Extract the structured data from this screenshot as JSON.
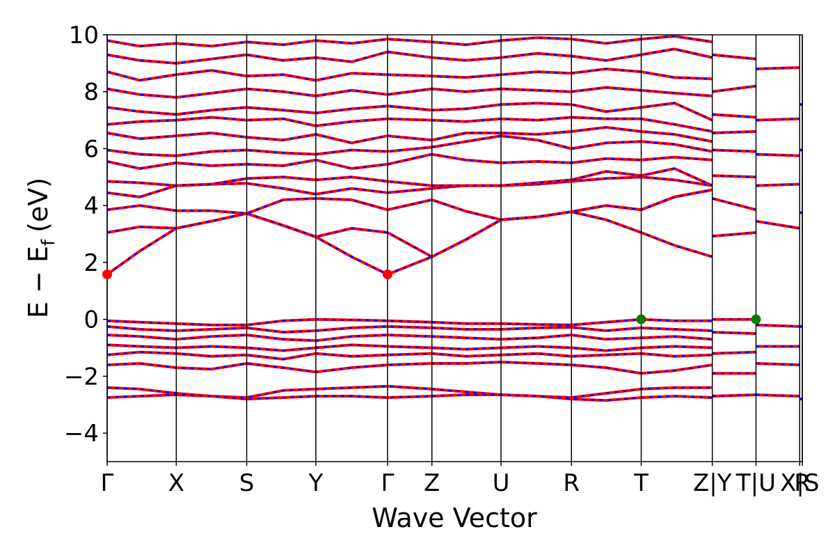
{
  "chart_data": {
    "type": "line",
    "title": "",
    "xlabel": "Wave Vector",
    "ylabel": "E − E",
    "ylabel_subscript": "f",
    "ylabel_suffix": "(eV)",
    "ylim": [
      -5,
      10
    ],
    "yticks": [
      -4,
      -2,
      0,
      2,
      4,
      6,
      8,
      10
    ],
    "ytick_labels": [
      "−4",
      "−2",
      "0",
      "2",
      "4",
      "6",
      "8",
      "10"
    ],
    "x_range": [
      0,
      10.66
    ],
    "kpoints": [
      {
        "label": "Γ",
        "x": 0.0
      },
      {
        "label": "X",
        "x": 1.06
      },
      {
        "label": "S",
        "x": 2.14
      },
      {
        "label": "Y",
        "x": 3.2
      },
      {
        "label": "Γ",
        "x": 4.3
      },
      {
        "label": "Z",
        "x": 4.98
      },
      {
        "label": "U",
        "x": 6.04
      },
      {
        "label": "R",
        "x": 7.12
      },
      {
        "label": "T",
        "x": 8.19
      },
      {
        "label": "Z|Y",
        "x": 9.28
      },
      {
        "label": "T|U",
        "x": 9.95
      },
      {
        "label": "X|S",
        "x": 10.62
      },
      {
        "label": "R",
        "x": 10.66
      }
    ],
    "grid": false,
    "colors": {
      "spin_up": "#ff0000",
      "spin_down": "#0000ff",
      "cbm": "#ff0000",
      "vbm": "#008000"
    },
    "markers": [
      {
        "type": "cbm",
        "x": 0.0,
        "y": 1.58
      },
      {
        "type": "cbm",
        "x": 4.3,
        "y": 1.58
      },
      {
        "type": "vbm",
        "x": 8.19,
        "y": 0.0
      },
      {
        "type": "vbm",
        "x": 9.95,
        "y": 0.0
      }
    ],
    "bands": [
      {
        "x": [
          0,
          0.5,
          1.06,
          1.6,
          2.14,
          2.7,
          3.2,
          3.75,
          4.3,
          4.98,
          5.5,
          6.04,
          6.6,
          7.12,
          7.65,
          8.19,
          8.7,
          9.28
        ],
        "y": [
          1.58,
          2.4,
          3.2,
          3.45,
          3.72,
          3.3,
          2.9,
          2.2,
          1.58,
          2.2,
          2.8,
          3.5,
          3.6,
          3.78,
          3.5,
          3.05,
          2.6,
          2.2
        ]
      },
      {
        "x": [
          0,
          0.5,
          1.06,
          1.6,
          2.14,
          2.7,
          3.2,
          3.75,
          4.3,
          4.98,
          5.5,
          6.04,
          6.6,
          7.12,
          7.65,
          8.19,
          8.7,
          9.28
        ],
        "y": [
          3.05,
          3.25,
          3.2,
          3.45,
          3.72,
          3.3,
          2.9,
          3.2,
          3.05,
          2.2,
          2.8,
          3.5,
          3.6,
          3.78,
          4.0,
          3.85,
          4.3,
          4.55
        ]
      },
      {
        "x": [
          0,
          0.5,
          1.06,
          1.6,
          2.14,
          2.7,
          3.2,
          3.75,
          4.3,
          4.98,
          5.5,
          6.04,
          6.6,
          7.12,
          7.65,
          8.19,
          8.7,
          9.28
        ],
        "y": [
          3.85,
          4.0,
          3.82,
          3.82,
          3.72,
          4.2,
          4.25,
          4.2,
          3.85,
          4.2,
          3.8,
          3.5,
          3.6,
          3.78,
          4.0,
          3.85,
          4.3,
          4.55
        ]
      },
      {
        "x": [
          0,
          0.5,
          1.06,
          1.6,
          2.14,
          2.7,
          3.2,
          3.75,
          4.3,
          4.98,
          5.5,
          6.04,
          6.6,
          7.12,
          7.65,
          8.19,
          8.7,
          9.28
        ],
        "y": [
          4.45,
          4.3,
          4.7,
          4.75,
          4.78,
          4.6,
          4.4,
          4.6,
          4.45,
          4.6,
          4.7,
          4.7,
          4.75,
          4.85,
          4.95,
          5.0,
          4.9,
          4.7
        ]
      },
      {
        "x": [
          0,
          0.5,
          1.06,
          1.6,
          2.14,
          2.7,
          3.2,
          3.75,
          4.3,
          4.98,
          5.5,
          6.04,
          6.6,
          7.12,
          7.65,
          8.19,
          8.7,
          9.28
        ],
        "y": [
          4.85,
          4.8,
          4.7,
          4.75,
          4.95,
          5.0,
          4.9,
          5.0,
          4.85,
          4.7,
          4.7,
          4.7,
          4.8,
          4.9,
          5.2,
          5.05,
          5.3,
          4.7
        ]
      },
      {
        "x": [
          0,
          0.5,
          1.06,
          1.6,
          2.14,
          2.7,
          3.2,
          3.75,
          4.3,
          4.98,
          5.5,
          6.04,
          6.6,
          7.12,
          7.65,
          8.19,
          8.7,
          9.28
        ],
        "y": [
          5.55,
          5.3,
          5.5,
          5.4,
          5.45,
          5.4,
          5.6,
          5.3,
          5.45,
          5.8,
          5.6,
          5.5,
          5.55,
          5.5,
          5.65,
          5.6,
          5.7,
          5.6
        ]
      },
      {
        "x": [
          0,
          0.5,
          1.06,
          1.6,
          2.14,
          2.7,
          3.2,
          3.75,
          4.3,
          4.98,
          5.5,
          6.04,
          6.6,
          7.12,
          7.65,
          8.19,
          8.7,
          9.28
        ],
        "y": [
          5.95,
          5.8,
          5.75,
          5.9,
          5.95,
          5.85,
          5.8,
          5.95,
          5.9,
          6.05,
          6.25,
          6.45,
          6.3,
          6.0,
          6.2,
          6.25,
          6.15,
          5.9
        ]
      },
      {
        "x": [
          0,
          0.5,
          1.06,
          1.6,
          2.14,
          2.7,
          3.2,
          3.75,
          4.3,
          4.98,
          5.5,
          6.04,
          6.6,
          7.12,
          7.65,
          8.19,
          8.7,
          9.28
        ],
        "y": [
          6.55,
          6.35,
          6.45,
          6.55,
          6.4,
          6.3,
          6.5,
          6.2,
          6.45,
          6.3,
          6.55,
          6.55,
          6.5,
          6.6,
          6.75,
          6.6,
          6.5,
          6.25
        ]
      },
      {
        "x": [
          0,
          0.5,
          1.06,
          1.6,
          2.14,
          2.7,
          3.2,
          3.75,
          4.3,
          4.98,
          5.5,
          6.04,
          6.6,
          7.12,
          7.65,
          8.19,
          8.7,
          9.28
        ],
        "y": [
          6.85,
          6.95,
          7.0,
          7.1,
          7.0,
          7.05,
          6.8,
          6.95,
          7.05,
          7.0,
          6.95,
          7.05,
          7.0,
          7.1,
          7.05,
          7.05,
          6.85,
          6.6
        ]
      },
      {
        "x": [
          0,
          0.5,
          1.06,
          1.6,
          2.14,
          2.7,
          3.2,
          3.75,
          4.3,
          4.98,
          5.5,
          6.04,
          6.6,
          7.12,
          7.65,
          8.19,
          8.7,
          9.28
        ],
        "y": [
          7.45,
          7.3,
          7.2,
          7.35,
          7.45,
          7.35,
          7.25,
          7.4,
          7.5,
          7.35,
          7.4,
          7.55,
          7.6,
          7.55,
          7.3,
          7.45,
          7.6,
          7.0
        ]
      },
      {
        "x": [
          0,
          0.5,
          1.06,
          1.6,
          2.14,
          2.7,
          3.2,
          3.75,
          4.3,
          4.98,
          5.5,
          6.04,
          6.6,
          7.12,
          7.65,
          8.19,
          8.7,
          9.28
        ],
        "y": [
          8.1,
          7.9,
          7.8,
          7.95,
          8.1,
          8.0,
          7.85,
          8.05,
          7.9,
          8.1,
          8.0,
          8.1,
          8.05,
          8.0,
          8.15,
          8.05,
          7.95,
          7.85
        ]
      },
      {
        "x": [
          0,
          0.5,
          1.06,
          1.6,
          2.14,
          2.7,
          3.2,
          3.75,
          4.3,
          4.98,
          5.5,
          6.04,
          6.6,
          7.12,
          7.65,
          8.19,
          8.7,
          9.28
        ],
        "y": [
          8.7,
          8.4,
          8.6,
          8.75,
          8.55,
          8.6,
          8.4,
          8.65,
          8.6,
          8.55,
          8.5,
          8.6,
          8.7,
          8.65,
          8.8,
          8.7,
          8.5,
          8.45
        ]
      },
      {
        "x": [
          0,
          0.5,
          1.06,
          1.6,
          2.14,
          2.7,
          3.2,
          3.75,
          4.3,
          4.98,
          5.5,
          6.04,
          6.6,
          7.12,
          7.65,
          8.19,
          8.7,
          9.28
        ],
        "y": [
          9.3,
          9.1,
          9.0,
          9.15,
          9.3,
          9.1,
          9.2,
          9.05,
          9.4,
          9.2,
          9.1,
          9.2,
          9.35,
          9.25,
          9.1,
          9.3,
          9.5,
          9.2
        ]
      },
      {
        "x": [
          0,
          0.5,
          1.06,
          1.6,
          2.14,
          2.7,
          3.2,
          3.75,
          4.3,
          4.98,
          5.5,
          6.04,
          6.6,
          7.12,
          7.65,
          8.19,
          8.7,
          9.28
        ],
        "y": [
          9.8,
          9.6,
          9.7,
          9.6,
          9.75,
          9.65,
          9.8,
          9.7,
          9.85,
          9.75,
          9.65,
          9.8,
          9.9,
          9.85,
          9.7,
          9.85,
          9.95,
          9.75
        ]
      },
      {
        "x": [
          0,
          0.5,
          1.06,
          1.6,
          2.14,
          2.7,
          3.2,
          3.75,
          4.3,
          4.98,
          5.5,
          6.04,
          6.6,
          7.12,
          7.65,
          8.19,
          8.7,
          9.28
        ],
        "y": [
          -0.05,
          -0.1,
          -0.15,
          -0.2,
          -0.2,
          -0.05,
          0.0,
          -0.02,
          -0.05,
          -0.1,
          -0.15,
          -0.15,
          -0.18,
          -0.2,
          -0.1,
          0.0,
          -0.05,
          -0.05
        ]
      },
      {
        "x": [
          0,
          0.5,
          1.06,
          1.6,
          2.14,
          2.7,
          3.2,
          3.75,
          4.3,
          4.98,
          5.5,
          6.04,
          6.6,
          7.12,
          7.65,
          8.19,
          8.7,
          9.28
        ],
        "y": [
          -0.25,
          -0.35,
          -0.4,
          -0.35,
          -0.3,
          -0.45,
          -0.4,
          -0.3,
          -0.25,
          -0.3,
          -0.35,
          -0.35,
          -0.3,
          -0.28,
          -0.4,
          -0.3,
          -0.35,
          -0.4
        ]
      },
      {
        "x": [
          0,
          0.5,
          1.06,
          1.6,
          2.14,
          2.7,
          3.2,
          3.75,
          4.3,
          4.98,
          5.5,
          6.04,
          6.6,
          7.12,
          7.65,
          8.19,
          8.7,
          9.28
        ],
        "y": [
          -0.55,
          -0.6,
          -0.7,
          -0.6,
          -0.55,
          -0.7,
          -0.75,
          -0.6,
          -0.55,
          -0.6,
          -0.65,
          -0.7,
          -0.65,
          -0.55,
          -0.7,
          -0.65,
          -0.6,
          -0.7
        ]
      },
      {
        "x": [
          0,
          0.5,
          1.06,
          1.6,
          2.14,
          2.7,
          3.2,
          3.75,
          4.3,
          4.98,
          5.5,
          6.04,
          6.6,
          7.12,
          7.65,
          8.19,
          8.7,
          9.28
        ],
        "y": [
          -0.9,
          -0.95,
          -1.0,
          -0.95,
          -1.0,
          -1.1,
          -1.0,
          -0.9,
          -0.95,
          -1.0,
          -1.05,
          -1.0,
          -0.95,
          -1.0,
          -1.1,
          -1.0,
          -0.95,
          -1.0
        ]
      },
      {
        "x": [
          0,
          0.5,
          1.06,
          1.6,
          2.14,
          2.7,
          3.2,
          3.75,
          4.3,
          4.98,
          5.5,
          6.04,
          6.6,
          7.12,
          7.65,
          8.19,
          8.7,
          9.28
        ],
        "y": [
          -1.25,
          -1.15,
          -1.2,
          -1.3,
          -1.25,
          -1.4,
          -1.2,
          -1.3,
          -1.25,
          -1.2,
          -1.3,
          -1.25,
          -1.2,
          -1.3,
          -1.25,
          -1.2,
          -1.3,
          -1.25
        ]
      },
      {
        "x": [
          0,
          0.5,
          1.06,
          1.6,
          2.14,
          2.7,
          3.2,
          3.75,
          4.3,
          4.98,
          5.5,
          6.04,
          6.6,
          7.12,
          7.65,
          8.19,
          8.7,
          9.28
        ],
        "y": [
          -1.6,
          -1.55,
          -1.7,
          -1.75,
          -1.55,
          -1.7,
          -1.85,
          -1.7,
          -1.6,
          -1.55,
          -1.55,
          -1.5,
          -1.55,
          -1.6,
          -1.7,
          -1.9,
          -1.8,
          -1.6
        ]
      },
      {
        "x": [
          0,
          0.5,
          1.06,
          1.6,
          2.14,
          2.7,
          3.2,
          3.75,
          4.3,
          4.98,
          5.5,
          6.04,
          6.6,
          7.12,
          7.65,
          8.19,
          8.7,
          9.28
        ],
        "y": [
          -2.4,
          -2.45,
          -2.6,
          -2.7,
          -2.75,
          -2.5,
          -2.45,
          -2.4,
          -2.35,
          -2.45,
          -2.55,
          -2.65,
          -2.7,
          -2.75,
          -2.6,
          -2.45,
          -2.4,
          -2.4
        ]
      },
      {
        "x": [
          0,
          0.5,
          1.06,
          1.6,
          2.14,
          2.7,
          3.2,
          3.75,
          4.3,
          4.98,
          5.5,
          6.04,
          6.6,
          7.12,
          7.65,
          8.19,
          8.7,
          9.28
        ],
        "y": [
          -2.75,
          -2.7,
          -2.65,
          -2.7,
          -2.8,
          -2.75,
          -2.7,
          -2.7,
          -2.75,
          -2.7,
          -2.65,
          -2.65,
          -2.7,
          -2.8,
          -2.85,
          -2.75,
          -2.7,
          -2.75
        ]
      }
    ],
    "segment_bands": [
      {
        "x": [
          9.28,
          9.95
        ],
        "y": [
          2.92,
          3.05
        ]
      },
      {
        "x": [
          9.28,
          9.95
        ],
        "y": [
          4.25,
          3.85
        ]
      },
      {
        "x": [
          9.28,
          9.95
        ],
        "y": [
          5.05,
          5.0
        ]
      },
      {
        "x": [
          9.28,
          9.95
        ],
        "y": [
          5.95,
          5.9
        ]
      },
      {
        "x": [
          9.28,
          9.95
        ],
        "y": [
          6.55,
          6.6
        ]
      },
      {
        "x": [
          9.28,
          9.95
        ],
        "y": [
          7.2,
          7.1
        ]
      },
      {
        "x": [
          9.28,
          9.95
        ],
        "y": [
          8.0,
          8.2
        ]
      },
      {
        "x": [
          9.28,
          9.95
        ],
        "y": [
          9.3,
          9.15
        ]
      },
      {
        "x": [
          9.28,
          9.95
        ],
        "y": [
          0.0,
          0.0
        ]
      },
      {
        "x": [
          9.28,
          9.95
        ],
        "y": [
          -0.45,
          -0.5
        ]
      },
      {
        "x": [
          9.28,
          9.95
        ],
        "y": [
          -1.2,
          -1.15
        ]
      },
      {
        "x": [
          9.28,
          9.95
        ],
        "y": [
          -1.9,
          -1.9
        ]
      },
      {
        "x": [
          9.28,
          9.95
        ],
        "y": [
          -2.7,
          -2.65
        ]
      },
      {
        "x": [
          9.95,
          10.62
        ],
        "y": [
          3.45,
          3.2
        ]
      },
      {
        "x": [
          9.95,
          10.62
        ],
        "y": [
          4.7,
          4.75
        ]
      },
      {
        "x": [
          9.95,
          10.62
        ],
        "y": [
          5.8,
          5.75
        ]
      },
      {
        "x": [
          9.95,
          10.62
        ],
        "y": [
          7.0,
          7.05
        ]
      },
      {
        "x": [
          9.95,
          10.62
        ],
        "y": [
          8.8,
          8.85
        ]
      },
      {
        "x": [
          9.95,
          10.62
        ],
        "y": [
          -0.2,
          -0.25
        ]
      },
      {
        "x": [
          9.95,
          10.62
        ],
        "y": [
          -0.95,
          -0.95
        ]
      },
      {
        "x": [
          9.95,
          10.62
        ],
        "y": [
          -1.55,
          -1.6
        ]
      },
      {
        "x": [
          9.95,
          10.62
        ],
        "y": [
          -2.65,
          -2.7
        ]
      },
      {
        "x": [
          10.62,
          10.66
        ],
        "y": [
          3.75,
          3.75
        ]
      },
      {
        "x": [
          10.62,
          10.66
        ],
        "y": [
          5.95,
          5.95
        ]
      },
      {
        "x": [
          10.62,
          10.66
        ],
        "y": [
          7.55,
          7.55
        ]
      },
      {
        "x": [
          10.62,
          10.66
        ],
        "y": [
          -0.25,
          -0.25
        ]
      },
      {
        "x": [
          10.62,
          10.66
        ],
        "y": [
          -2.8,
          -2.8
        ]
      }
    ]
  }
}
